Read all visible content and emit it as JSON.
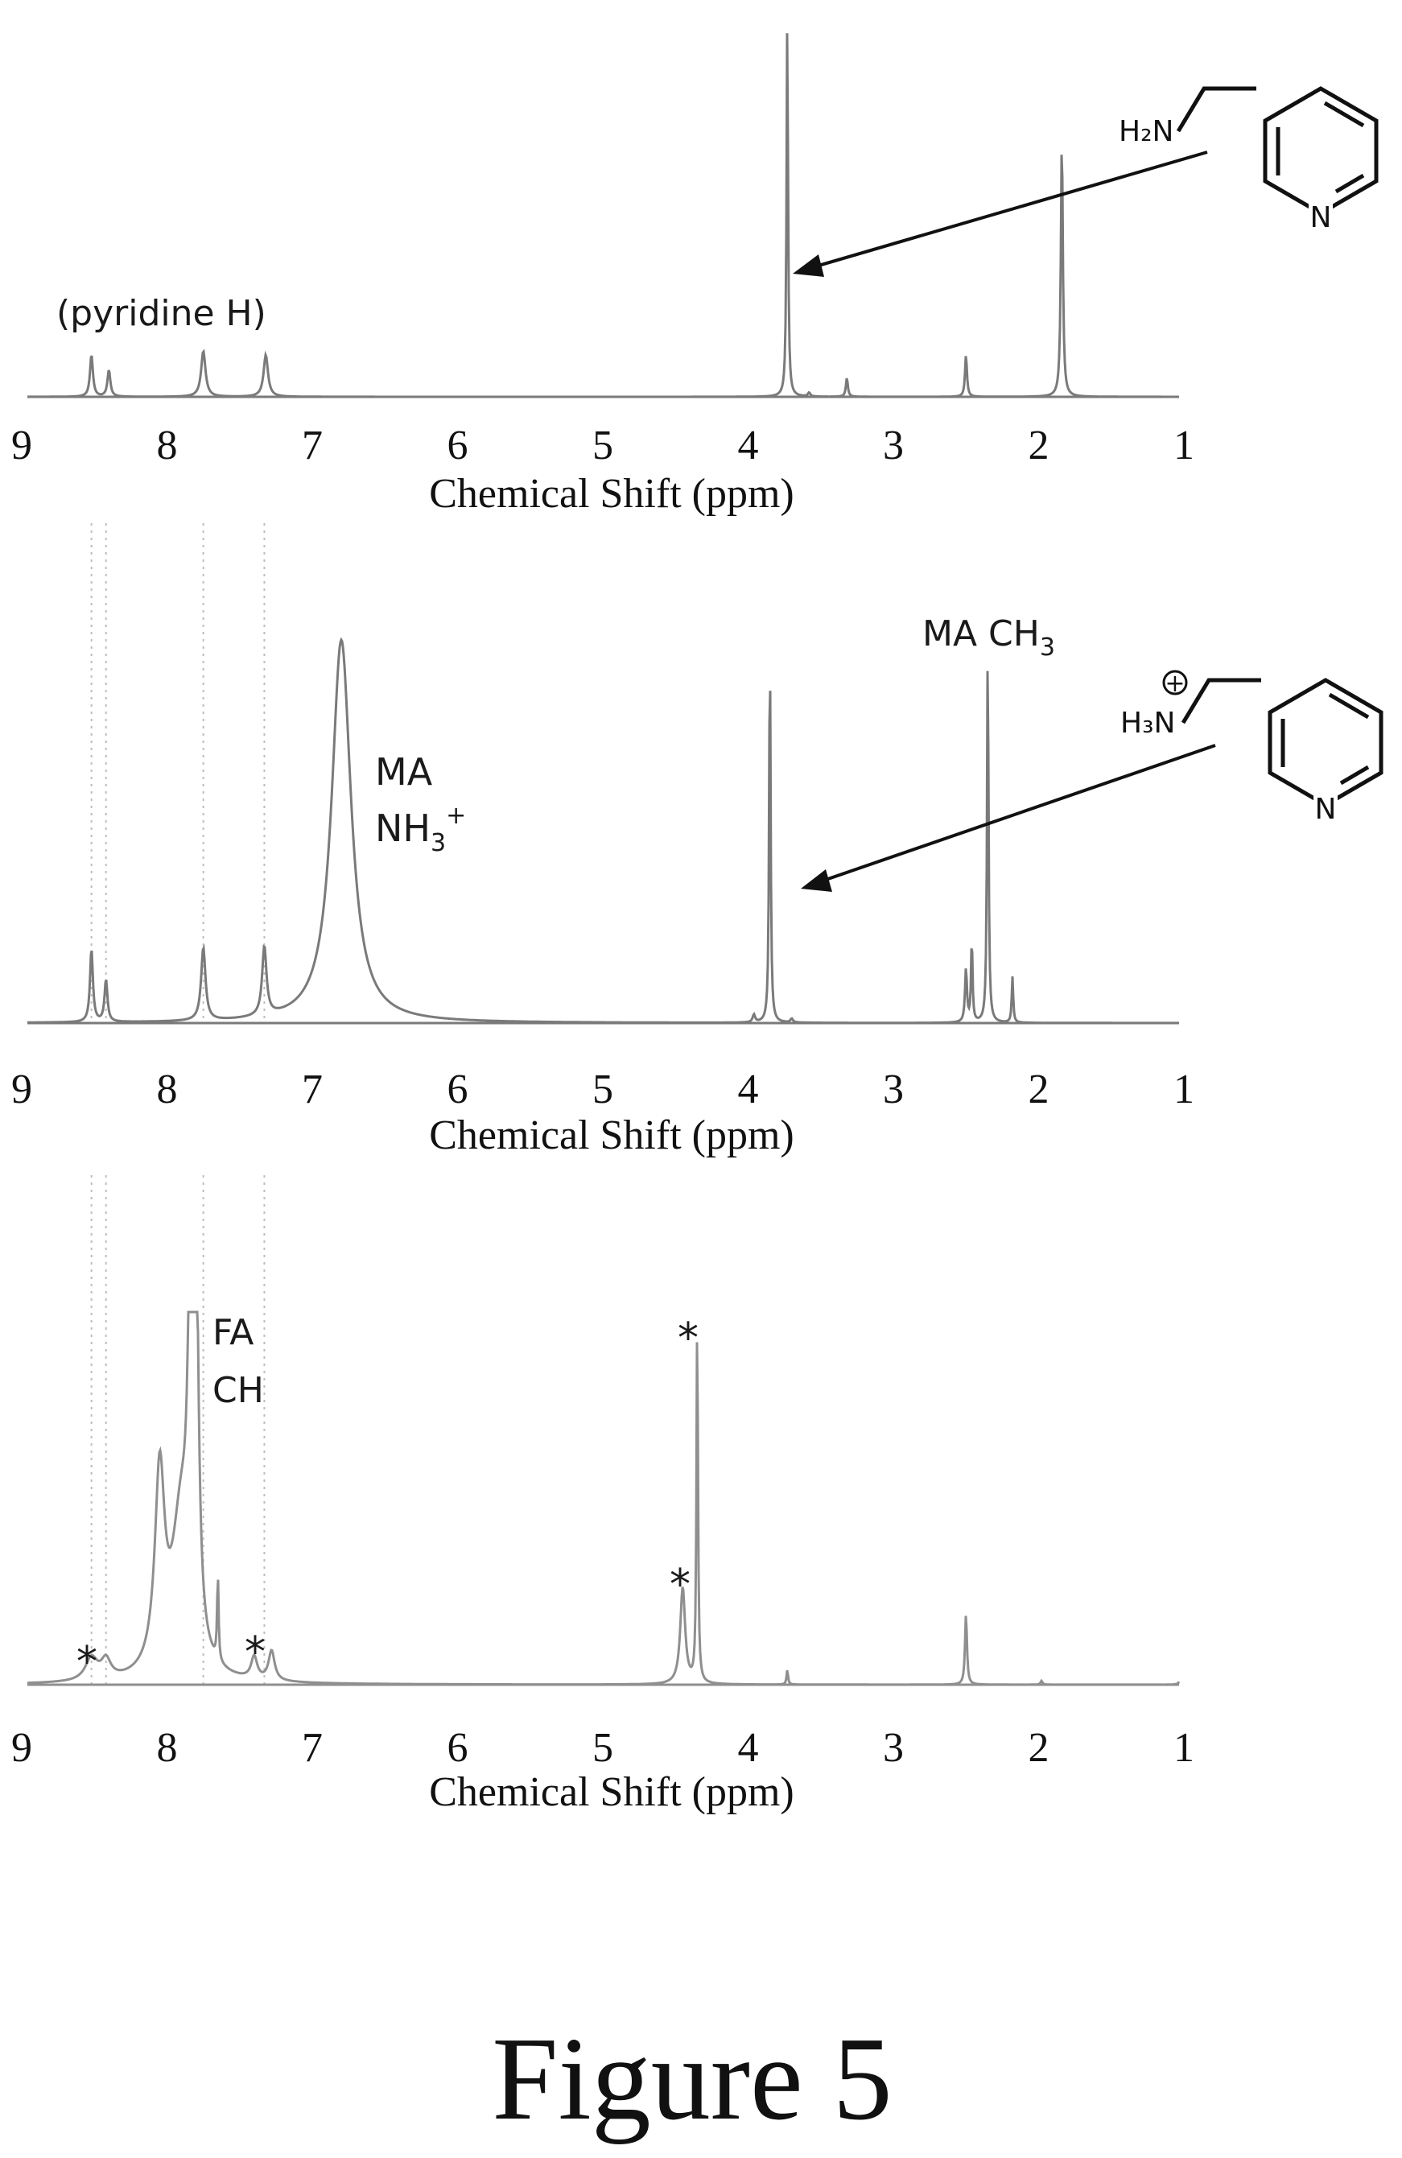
{
  "figure_title": "Figure 5",
  "colors": {
    "spectrum": "#7a7a7a",
    "spectrum_light": "#8f8f8f",
    "guide": "#bdbdbd",
    "ink": "#111111"
  },
  "chart_data": [
    {
      "type": "line",
      "xlabel": "Chemical Shift (ppm)",
      "xlim": [
        9,
        1
      ],
      "x_reversed": true,
      "ticks": [
        9,
        8,
        7,
        6,
        5,
        4,
        3,
        2,
        1
      ],
      "tick_labels": [
        "9",
        "8",
        "7",
        "6",
        "5",
        "4",
        "3",
        "2",
        "1"
      ],
      "peaks": [
        {
          "x": 8.52,
          "h": 0.11,
          "w": 0.012
        },
        {
          "x": 8.4,
          "h": 0.07,
          "w": 0.012
        },
        {
          "x": 7.75,
          "h": 0.12,
          "w": 0.018
        },
        {
          "x": 7.32,
          "h": 0.11,
          "w": 0.018
        },
        {
          "x": 3.73,
          "h": 1.0,
          "w": 0.006
        },
        {
          "x": 3.58,
          "h": 0.01,
          "w": 0.01
        },
        {
          "x": 3.32,
          "h": 0.05,
          "w": 0.008
        },
        {
          "x": 2.5,
          "h": 0.11,
          "w": 0.008
        },
        {
          "x": 1.84,
          "h": 0.68,
          "w": 0.008
        }
      ],
      "annotations": [
        {
          "id": "pyridine",
          "text": "(pyridine H)"
        }
      ],
      "molecule": {
        "amine": "H₂N",
        "ring_n": "N"
      }
    },
    {
      "type": "line",
      "xlabel": "Chemical Shift (ppm)",
      "xlim": [
        9,
        1
      ],
      "x_reversed": true,
      "ticks": [
        9,
        8,
        7,
        6,
        5,
        4,
        3,
        2,
        1
      ],
      "tick_labels": [
        "9",
        "8",
        "7",
        "6",
        "5",
        "4",
        "3",
        "2",
        "1"
      ],
      "peaks": [
        {
          "x": 8.52,
          "h": 0.19,
          "w": 0.012
        },
        {
          "x": 8.42,
          "h": 0.11,
          "w": 0.012
        },
        {
          "x": 7.75,
          "h": 0.19,
          "w": 0.018
        },
        {
          "x": 7.33,
          "h": 0.18,
          "w": 0.018
        },
        {
          "x": 6.8,
          "h": 1.0,
          "w": 0.08
        },
        {
          "x": 3.85,
          "h": 1.0,
          "w": 0.006
        },
        {
          "x": 3.96,
          "h": 0.02,
          "w": 0.01
        },
        {
          "x": 3.7,
          "h": 0.01,
          "w": 0.01
        },
        {
          "x": 2.5,
          "h": 0.14,
          "w": 0.008
        },
        {
          "x": 2.46,
          "h": 0.22,
          "w": 0.006
        },
        {
          "x": 2.35,
          "h": 1.0,
          "w": 0.006
        },
        {
          "x": 2.18,
          "h": 0.12,
          "w": 0.006
        }
      ],
      "annotations": [
        {
          "id": "ma_nh3",
          "line1": "MA",
          "line2": "NH",
          "sub": "3",
          "sup": "+"
        },
        {
          "id": "ma_ch3",
          "text": "MA CH",
          "sub": "3"
        }
      ],
      "molecule": {
        "amine": "H₃N",
        "charge": "+",
        "ring_n": "N"
      }
    },
    {
      "type": "line",
      "xlabel": "Chemical Shift (ppm)",
      "xlim": [
        9,
        1
      ],
      "x_reversed": true,
      "ticks": [
        9,
        8,
        7,
        6,
        5,
        4,
        3,
        2,
        1
      ],
      "tick_labels": [
        "9",
        "8",
        "7",
        "6",
        "5",
        "4",
        "3",
        "2",
        "1"
      ],
      "peaks": [
        {
          "x": 8.52,
          "h": 0.06,
          "w": 0.05
        },
        {
          "x": 8.42,
          "h": 0.05,
          "w": 0.04
        },
        {
          "x": 8.05,
          "h": 0.52,
          "w": 0.04
        },
        {
          "x": 7.9,
          "h": 0.42,
          "w": 0.08
        },
        {
          "x": 7.8,
          "h": 1.0,
          "w": 0.02
        },
        {
          "x": 7.84,
          "h": 0.8,
          "w": 0.02
        },
        {
          "x": 7.65,
          "h": 0.23,
          "w": 0.006
        },
        {
          "x": 7.4,
          "h": 0.06,
          "w": 0.025
        },
        {
          "x": 7.28,
          "h": 0.08,
          "w": 0.025
        },
        {
          "x": 4.45,
          "h": 0.26,
          "w": 0.02
        },
        {
          "x": 4.35,
          "h": 0.99,
          "w": 0.006
        },
        {
          "x": 3.73,
          "h": 0.04,
          "w": 0.006
        },
        {
          "x": 2.5,
          "h": 0.19,
          "w": 0.008
        },
        {
          "x": 1.98,
          "h": 0.01,
          "w": 0.008
        },
        {
          "x": 1.02,
          "h": 0.03,
          "w": 0.008
        }
      ],
      "annotations": [
        {
          "id": "fa_ch",
          "line1": "FA",
          "line2": "CH"
        },
        {
          "id": "star1",
          "text": "*"
        },
        {
          "id": "star2",
          "text": "*"
        },
        {
          "id": "star3",
          "text": "*"
        },
        {
          "id": "star4",
          "text": "*"
        }
      ]
    }
  ]
}
